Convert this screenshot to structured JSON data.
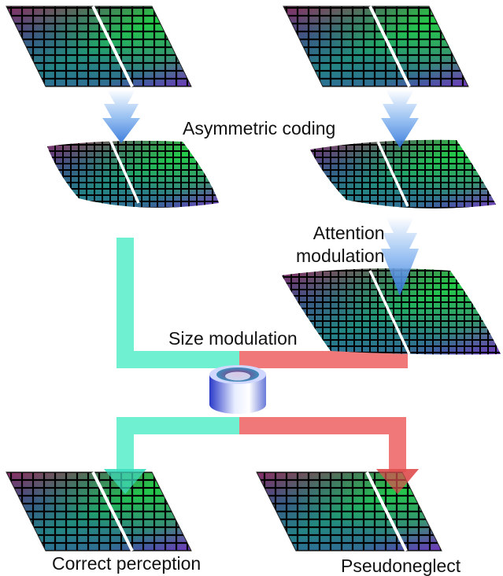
{
  "labels": {
    "asymmetric_coding": "Asymmetric coding",
    "attention_modulation_line1": "Attention",
    "attention_modulation_line2": "modulation",
    "size_modulation": "Size modulation",
    "correct_perception": "Correct perception",
    "pseudoneglect": "Pseudoneglect"
  },
  "colors": {
    "left_pathway": "#6ff0d0",
    "right_pathway": "#f07878",
    "down_arrow": "#8ab8f0",
    "midline": "#ffffff",
    "cell_outline": "#000000"
  },
  "icons": {
    "comparator": "cylinder-icon",
    "flow_arrow": "down-arrow-icon",
    "stimulus": "checkerboard-icon"
  }
}
